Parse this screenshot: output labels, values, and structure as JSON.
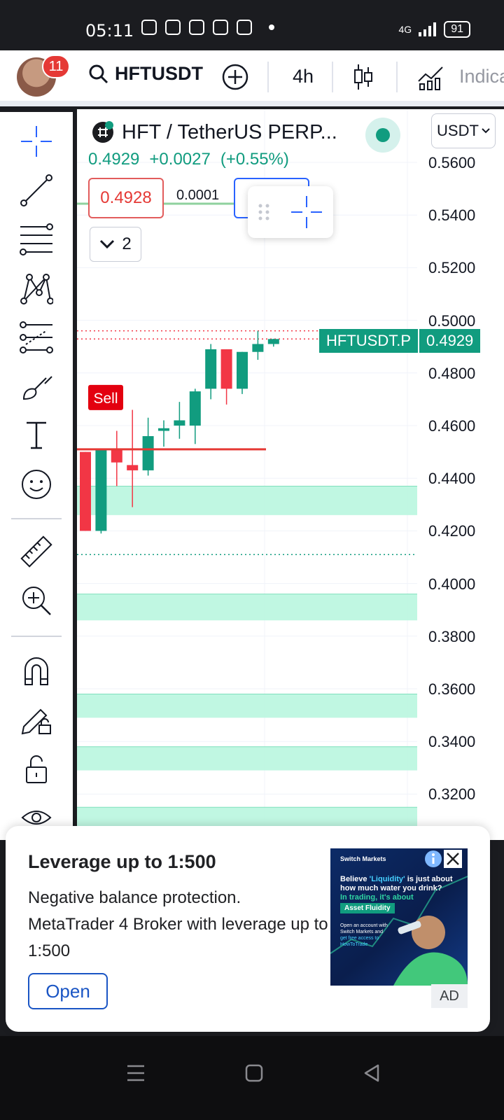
{
  "status_bar": {
    "time": "05:11",
    "network": "4G",
    "battery": "91"
  },
  "header": {
    "notification_count": "11",
    "symbol": "HFTUSDT",
    "interval": "4h",
    "indicators_label": "Indica"
  },
  "chart": {
    "title": "HFT / TetherUS PERP...",
    "currency": "USDT",
    "last_price": "0.4929",
    "change": "+0.0027",
    "change_pct": "(+0.55%)",
    "sell_price": "0.4928",
    "spread": "0.0001",
    "collapse_count": "2",
    "sell_label": "Sell",
    "price_tag_symbol": "HFTUSDT.P",
    "price_tag_value": "0.4929",
    "axis_labels": [
      "0.5600",
      "0.5400",
      "0.5200",
      "0.5000",
      "0.4800",
      "0.4600",
      "0.4400",
      "0.4200",
      "0.4000",
      "0.3800",
      "0.3600",
      "0.3400",
      "0.3200"
    ],
    "colors": {
      "up": "#119c7f",
      "down": "#f23645",
      "zone": "#b9f6df"
    }
  },
  "chart_data": {
    "type": "candlestick",
    "y_range": [
      0.31,
      0.57
    ],
    "candles": [
      {
        "o": 0.45,
        "h": 0.45,
        "l": 0.42,
        "c": 0.42
      },
      {
        "o": 0.42,
        "h": 0.451,
        "l": 0.419,
        "c": 0.451
      },
      {
        "o": 0.451,
        "h": 0.458,
        "l": 0.437,
        "c": 0.446
      },
      {
        "o": 0.445,
        "h": 0.466,
        "l": 0.429,
        "c": 0.443
      },
      {
        "o": 0.443,
        "h": 0.463,
        "l": 0.441,
        "c": 0.456
      },
      {
        "o": 0.458,
        "h": 0.462,
        "l": 0.452,
        "c": 0.459
      },
      {
        "o": 0.46,
        "h": 0.469,
        "l": 0.455,
        "c": 0.462
      },
      {
        "o": 0.46,
        "h": 0.474,
        "l": 0.453,
        "c": 0.473
      },
      {
        "o": 0.474,
        "h": 0.491,
        "l": 0.47,
        "c": 0.489
      },
      {
        "o": 0.489,
        "h": 0.489,
        "l": 0.468,
        "c": 0.474
      },
      {
        "o": 0.474,
        "h": 0.488,
        "l": 0.472,
        "c": 0.488
      },
      {
        "o": 0.488,
        "h": 0.496,
        "l": 0.485,
        "c": 0.491
      },
      {
        "o": 0.491,
        "h": 0.493,
        "l": 0.49,
        "c": 0.4929
      }
    ],
    "sell_line": 0.451,
    "dotted_lines": [
      0.4929,
      0.496,
      0.411
    ],
    "zones": [
      [
        0.426,
        0.437
      ],
      [
        0.386,
        0.396
      ],
      [
        0.349,
        0.358
      ],
      [
        0.329,
        0.338
      ],
      [
        0.305,
        0.315
      ]
    ]
  },
  "toolbar": {
    "tools": [
      "crosshair-icon",
      "trend-line-icon",
      "fib-icon",
      "pattern-icon",
      "prediction-icon",
      "brush-icon",
      "text-icon",
      "emoji-icon",
      "ruler-icon",
      "zoom-in-icon",
      "magnet-icon",
      "lock-drawing-icon",
      "lock-icon",
      "eye-icon"
    ]
  },
  "ad": {
    "title": "Leverage up to 1:500",
    "body": "Negative balance protection. MetaTrader 4 Broker with leverage up to 1:500",
    "button": "Open",
    "tag": "AD",
    "image_brand": "Switch Markets",
    "image_headline_1": "Believe ",
    "image_headline_accent": "'Liquidity'",
    "image_headline_2": " is just about how much water you drink?",
    "image_subline": "In trading, it's about",
    "image_chip": "Asset Fluidity",
    "image_small_1": "Open an account with",
    "image_small_2": "Switch Markets and",
    "image_small_3": "get free access to",
    "image_small_4": "HowToTrade"
  }
}
